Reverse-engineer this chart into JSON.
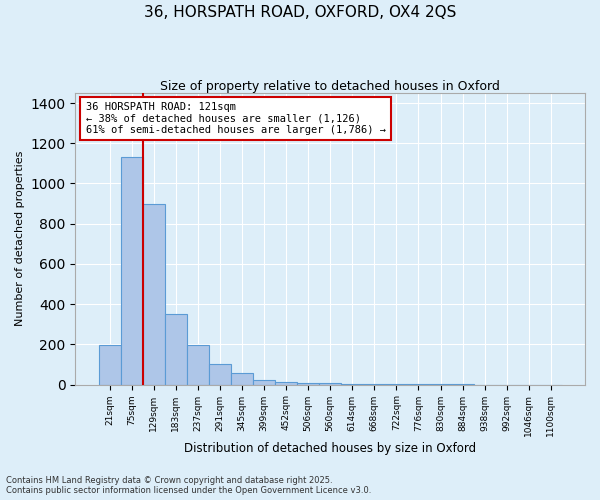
{
  "title": "36, HORSPATH ROAD, OXFORD, OX4 2QS",
  "subtitle": "Size of property relative to detached houses in Oxford",
  "xlabel": "Distribution of detached houses by size in Oxford",
  "ylabel": "Number of detached properties",
  "categories": [
    "21sqm",
    "75sqm",
    "129sqm",
    "183sqm",
    "237sqm",
    "291sqm",
    "345sqm",
    "399sqm",
    "452sqm",
    "506sqm",
    "560sqm",
    "614sqm",
    "668sqm",
    "722sqm",
    "776sqm",
    "830sqm",
    "884sqm",
    "938sqm",
    "992sqm",
    "1046sqm",
    "1100sqm"
  ],
  "bar_values": [
    195,
    1130,
    900,
    350,
    195,
    100,
    60,
    25,
    15,
    10,
    6,
    4,
    2,
    2,
    1,
    1,
    1,
    0,
    0,
    0,
    0
  ],
  "bar_color": "#aec6e8",
  "bar_edge_color": "#5b9bd5",
  "vline_x_index": 2,
  "vline_color": "#cc0000",
  "annotation_text": "36 HORSPATH ROAD: 121sqm\n← 38% of detached houses are smaller (1,126)\n61% of semi-detached houses are larger (1,786) →",
  "annotation_box_color": "#cc0000",
  "ylim": [
    0,
    1450
  ],
  "yticks": [
    0,
    200,
    400,
    600,
    800,
    1000,
    1200,
    1400
  ],
  "bg_color": "#ddeef9",
  "grid_color": "#ffffff",
  "footer1": "Contains HM Land Registry data © Crown copyright and database right 2025.",
  "footer2": "Contains public sector information licensed under the Open Government Licence v3.0."
}
